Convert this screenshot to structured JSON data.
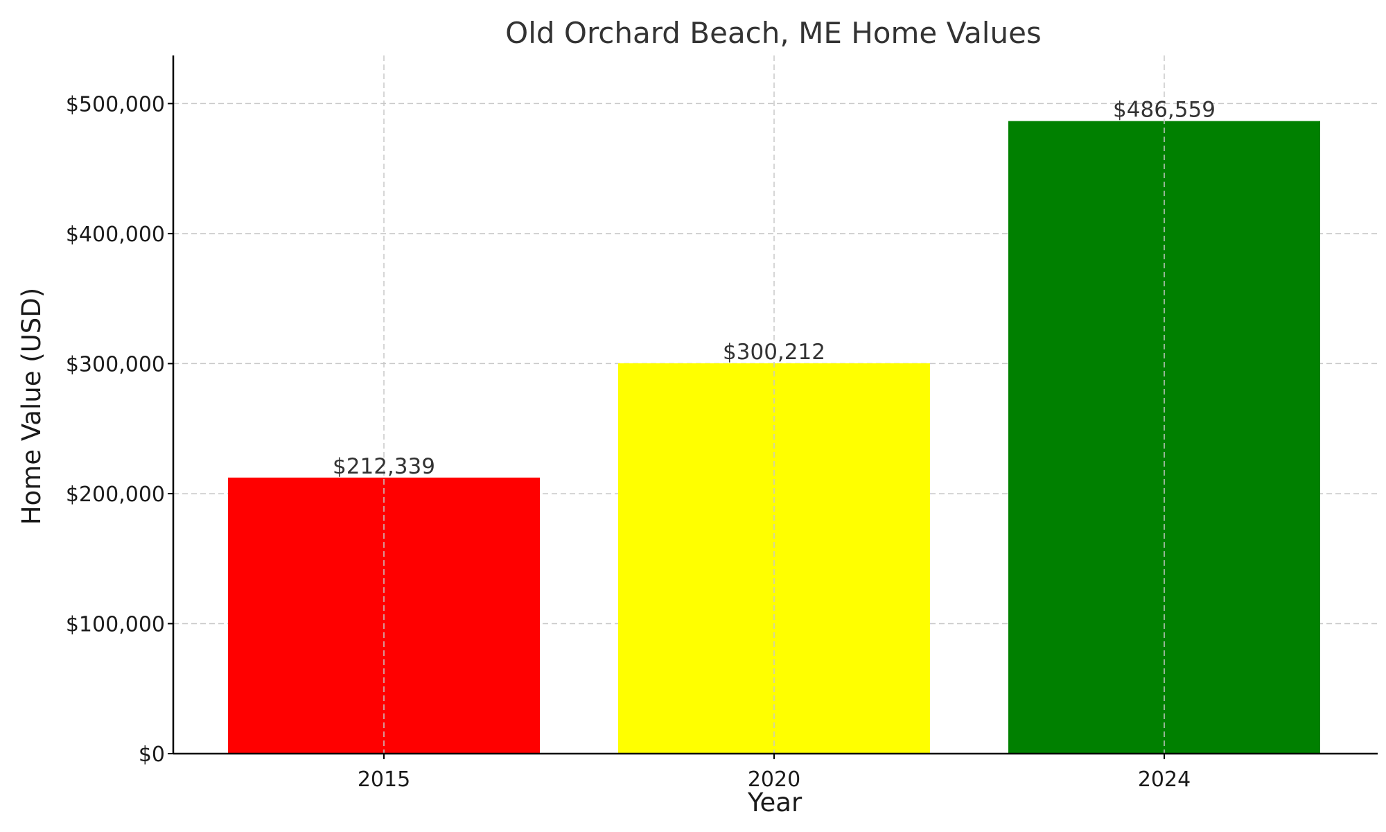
{
  "chart_data": {
    "type": "bar",
    "title": "Old Orchard Beach, ME Home Values",
    "xlabel": "Year",
    "ylabel": "Home Value (USD)",
    "categories": [
      "2015",
      "2020",
      "2024"
    ],
    "values": [
      212339,
      300212,
      486559
    ],
    "value_labels": [
      "$212,339",
      "$300,212",
      "$486,559"
    ],
    "colors": [
      "#ff0000",
      "#ffff00",
      "#008000"
    ],
    "ylim": [
      0,
      537000
    ],
    "y_ticks": [
      0,
      100000,
      200000,
      300000,
      400000,
      500000
    ],
    "y_tick_labels": [
      "$0",
      "$100,000",
      "$200,000",
      "$300,000",
      "$400,000",
      "$500,000"
    ],
    "grid": true,
    "legend": "none"
  }
}
